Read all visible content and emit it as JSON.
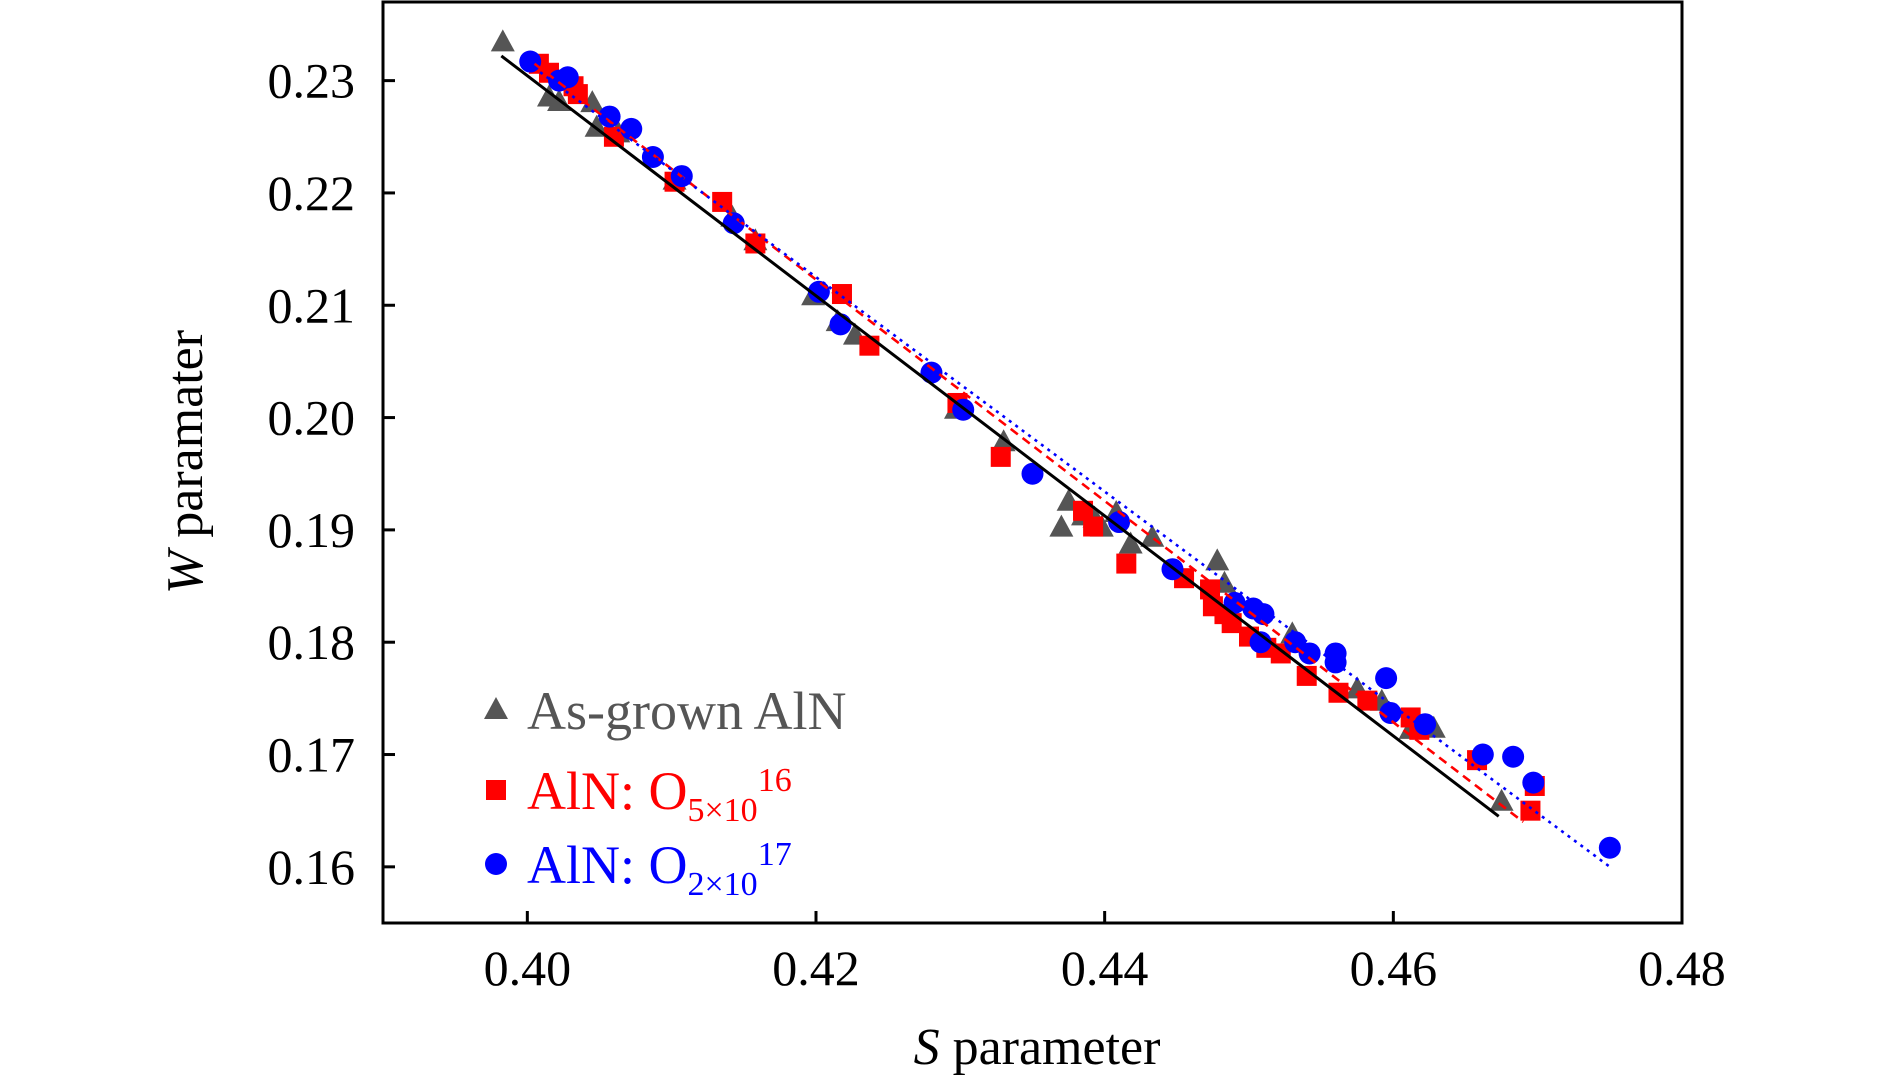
{
  "chart_data": {
    "type": "scatter",
    "xlabel": {
      "italic": "S",
      "rest": " parameter"
    },
    "ylabel": {
      "italic": "W",
      "rest": " paramater"
    },
    "xlim": [
      0.39,
      0.48
    ],
    "ylim": [
      0.155,
      0.237
    ],
    "xticks": [
      "0.40",
      "0.42",
      "0.44",
      "0.46",
      "0.48"
    ],
    "yticks": [
      "0.16",
      "0.17",
      "0.18",
      "0.19",
      "0.20",
      "0.21",
      "0.22",
      "0.23"
    ],
    "grid": false,
    "legend_position": "bottom-left",
    "series": [
      {
        "name": "As-grown AlN",
        "legend": {
          "main": "As-grown AlN",
          "sub": "",
          "sup": ""
        },
        "color": "#555555",
        "marker": "triangle",
        "fit": {
          "style": "solid",
          "color": "#000000",
          "x": [
            0.3982,
            0.4673
          ],
          "y": [
            0.2322,
            0.1645
          ]
        },
        "points": [
          [
            0.3983,
            0.2334
          ],
          [
            0.4015,
            0.2285
          ],
          [
            0.4022,
            0.2281
          ],
          [
            0.4045,
            0.228
          ],
          [
            0.4048,
            0.2258
          ],
          [
            0.4063,
            0.2253
          ],
          [
            0.4102,
            0.2211
          ],
          [
            0.4142,
            0.2178
          ],
          [
            0.4158,
            0.2157
          ],
          [
            0.4198,
            0.2108
          ],
          [
            0.4215,
            0.2085
          ],
          [
            0.4227,
            0.2073
          ],
          [
            0.4297,
            0.2007
          ],
          [
            0.433,
            0.1978
          ],
          [
            0.437,
            0.1902
          ],
          [
            0.4375,
            0.1925
          ],
          [
            0.4385,
            0.1912
          ],
          [
            0.4393,
            0.191
          ],
          [
            0.4398,
            0.1902
          ],
          [
            0.4408,
            0.1915
          ],
          [
            0.4418,
            0.1887
          ],
          [
            0.4433,
            0.1893
          ],
          [
            0.4478,
            0.1872
          ],
          [
            0.4483,
            0.1852
          ],
          [
            0.453,
            0.1807
          ],
          [
            0.4575,
            0.1758
          ],
          [
            0.4592,
            0.1747
          ],
          [
            0.4612,
            0.1722
          ],
          [
            0.4628,
            0.1723
          ],
          [
            0.4675,
            0.1658
          ]
        ]
      },
      {
        "name": "AlN: O5×1016",
        "legend": {
          "main": "AlN: O",
          "sub": "5×10",
          "sup": "16"
        },
        "color": "#ff0000",
        "marker": "square",
        "fit": {
          "style": "dashed",
          "color": "#ff0000",
          "x": [
            0.4005,
            0.469
          ],
          "y": [
            0.2315,
            0.164
          ]
        },
        "points": [
          [
            0.4008,
            0.2315
          ],
          [
            0.4015,
            0.2307
          ],
          [
            0.4032,
            0.2295
          ],
          [
            0.4035,
            0.2288
          ],
          [
            0.406,
            0.225
          ],
          [
            0.4102,
            0.221
          ],
          [
            0.4135,
            0.2192
          ],
          [
            0.4158,
            0.2155
          ],
          [
            0.4218,
            0.211
          ],
          [
            0.4237,
            0.2064
          ],
          [
            0.4298,
            0.2013
          ],
          [
            0.4328,
            0.1965
          ],
          [
            0.4385,
            0.1917
          ],
          [
            0.4392,
            0.1903
          ],
          [
            0.4415,
            0.187
          ],
          [
            0.4455,
            0.1857
          ],
          [
            0.4473,
            0.1847
          ],
          [
            0.4475,
            0.1832
          ],
          [
            0.4483,
            0.1825
          ],
          [
            0.4488,
            0.1817
          ],
          [
            0.45,
            0.1805
          ],
          [
            0.4512,
            0.1795
          ],
          [
            0.4522,
            0.179
          ],
          [
            0.454,
            0.177
          ],
          [
            0.4562,
            0.1755
          ],
          [
            0.4582,
            0.1748
          ],
          [
            0.4612,
            0.1733
          ],
          [
            0.4618,
            0.1722
          ],
          [
            0.4658,
            0.1695
          ],
          [
            0.4695,
            0.165
          ],
          [
            0.4698,
            0.1672
          ]
        ]
      },
      {
        "name": "AlN: O2×1017",
        "legend": {
          "main": "AlN: O",
          "sub": "2×10",
          "sup": "17"
        },
        "color": "#0000ff",
        "marker": "circle",
        "fit": {
          "style": "dotted",
          "color": "#0000ff",
          "x": [
            0.4,
            0.475
          ],
          "y": [
            0.2316,
            0.16
          ]
        },
        "points": [
          [
            0.4002,
            0.2317
          ],
          [
            0.4022,
            0.23
          ],
          [
            0.4028,
            0.2303
          ],
          [
            0.4057,
            0.2268
          ],
          [
            0.4072,
            0.2257
          ],
          [
            0.4087,
            0.2232
          ],
          [
            0.4107,
            0.2215
          ],
          [
            0.4143,
            0.2173
          ],
          [
            0.4202,
            0.2112
          ],
          [
            0.4217,
            0.2083
          ],
          [
            0.428,
            0.204
          ],
          [
            0.4302,
            0.2007
          ],
          [
            0.435,
            0.195
          ],
          [
            0.441,
            0.1907
          ],
          [
            0.4447,
            0.1865
          ],
          [
            0.449,
            0.1835
          ],
          [
            0.4503,
            0.183
          ],
          [
            0.451,
            0.1825
          ],
          [
            0.4508,
            0.18
          ],
          [
            0.4532,
            0.18
          ],
          [
            0.4542,
            0.179
          ],
          [
            0.456,
            0.179
          ],
          [
            0.456,
            0.1782
          ],
          [
            0.4595,
            0.1768
          ],
          [
            0.4598,
            0.1737
          ],
          [
            0.4622,
            0.1727
          ],
          [
            0.4662,
            0.17
          ],
          [
            0.4683,
            0.1698
          ],
          [
            0.4697,
            0.1675
          ],
          [
            0.475,
            0.1617
          ]
        ]
      }
    ]
  }
}
